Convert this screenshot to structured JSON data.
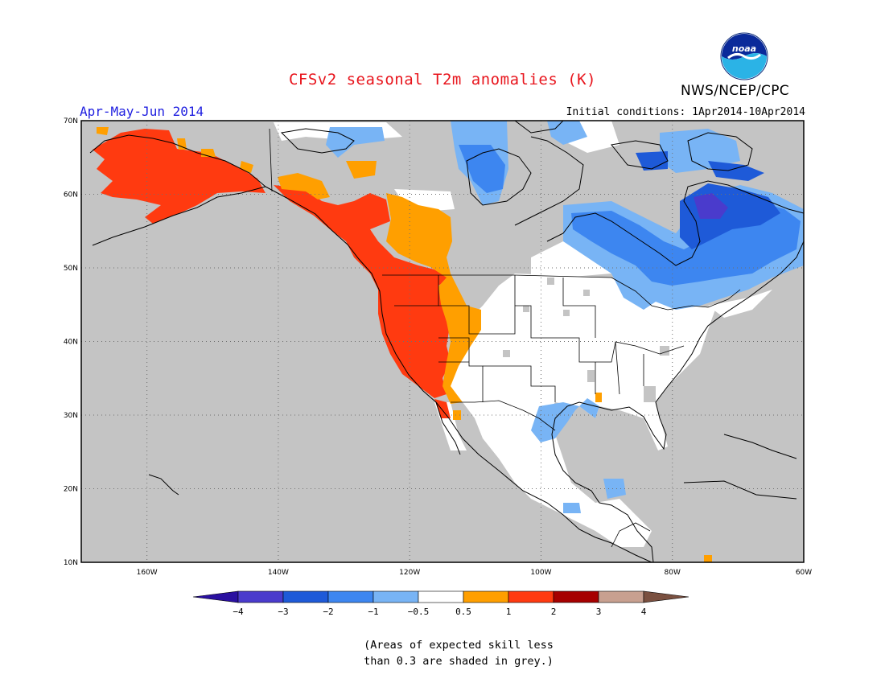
{
  "title": "CFSv2 seasonal T2m anomalies (K)",
  "season": "Apr-May-Jun 2014",
  "initial_conditions": "Initial conditions: 1Apr2014-10Apr2014",
  "agency": "NWS/NCEP/CPC",
  "logo_icon": "noaa-logo-icon",
  "colors": {
    "title": "#e8141c",
    "season": "#2020e0",
    "grey_mask": "#c4c4c4",
    "ocean_land_white": "#ffffff",
    "border": "#000000"
  },
  "map": {
    "projection": "lat-lon",
    "lon_range": [
      -170,
      -60
    ],
    "lat_range": [
      10,
      70
    ],
    "lat_labels": [
      "10N",
      "20N",
      "30N",
      "40N",
      "50N",
      "60N",
      "70N"
    ],
    "lon_labels": [
      "160W",
      "140W",
      "120W",
      "100W",
      "80W",
      "60W"
    ],
    "lat_values": [
      10,
      20,
      30,
      40,
      50,
      60,
      70
    ],
    "lon_values": [
      -160,
      -140,
      -120,
      -100,
      -80,
      -60
    ],
    "anomaly_regions": [
      {
        "name": "alaska",
        "level": "1 to 2",
        "color": "#ff3a10"
      },
      {
        "name": "alaska-fringe",
        "level": "0.5 to 1",
        "color": "#ff9f00"
      },
      {
        "name": "west-coast",
        "level": "1 to 2",
        "color": "#ff3a10"
      },
      {
        "name": "rockies",
        "level": "0.5 to 1",
        "color": "#ff9f00"
      },
      {
        "name": "western-canada",
        "level": "0.5 to 1",
        "color": "#ff9f00"
      },
      {
        "name": "western-canada-core",
        "level": "1 to 2",
        "color": "#ff3a10"
      },
      {
        "name": "eastern-canada",
        "level": "-1 to -2",
        "color": "#3d86f0"
      },
      {
        "name": "quebec-core",
        "level": "-2 to -3",
        "color": "#1e5ad8"
      },
      {
        "name": "hudson-core",
        "level": "-3 to -4",
        "color": "#4a3bcc"
      },
      {
        "name": "gulf-coast",
        "level": "-0.5 to -1",
        "color": "#78b4f5"
      },
      {
        "name": "central-america",
        "level": "-0.5 to -1",
        "color": "#78b4f5"
      },
      {
        "name": "arctic-canada",
        "level": "-0.5 to -1",
        "color": "#78b4f5"
      }
    ]
  },
  "colorbar": {
    "labels": [
      "-4",
      "-3",
      "-2",
      "-1",
      "-0.5",
      "0.5",
      "1",
      "2",
      "3",
      "4"
    ],
    "colors": [
      "#2a10a0",
      "#4a3bcc",
      "#1e5ad8",
      "#3d86f0",
      "#78b4f5",
      "#ffffff",
      "#ff9f00",
      "#ff3a10",
      "#a60000",
      "#c8a090",
      "#7a5040"
    ]
  },
  "note_line1": "(Areas of expected skill less",
  "note_line2": "than 0.3 are shaded in grey.)"
}
